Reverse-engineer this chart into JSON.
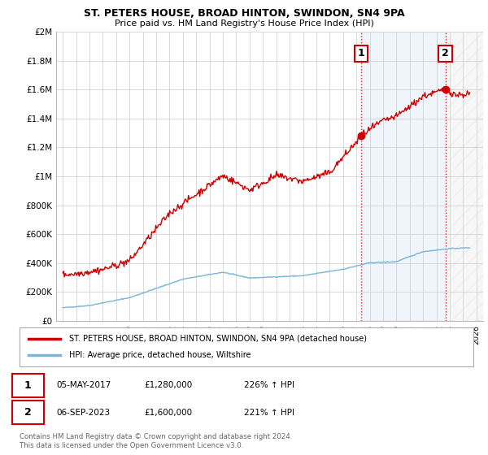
{
  "title": "ST. PETERS HOUSE, BROAD HINTON, SWINDON, SN4 9PA",
  "subtitle": "Price paid vs. HM Land Registry's House Price Index (HPI)",
  "legend_line1": "ST. PETERS HOUSE, BROAD HINTON, SWINDON, SN4 9PA (detached house)",
  "legend_line2": "HPI: Average price, detached house, Wiltshire",
  "annotation1": {
    "num": "1",
    "date": "05-MAY-2017",
    "price": "£1,280,000",
    "hpi": "226% ↑ HPI",
    "year": 2017.35,
    "value": 1280000
  },
  "annotation2": {
    "num": "2",
    "date": "06-SEP-2023",
    "price": "£1,600,000",
    "hpi": "221% ↑ HPI",
    "year": 2023.67,
    "value": 1600000
  },
  "footer": "Contains HM Land Registry data © Crown copyright and database right 2024.\nThis data is licensed under the Open Government Licence v3.0.",
  "hpi_color": "#7ab4d8",
  "price_color": "#cc0000",
  "dashed_color": "#cc0000",
  "background_color": "#ffffff",
  "grid_color": "#cccccc",
  "highlight_color": "#ddeeff",
  "hatch_color": "#cccccc",
  "ylim": [
    0,
    2000000
  ],
  "xlim": [
    1994.5,
    2026.5
  ],
  "yticks": [
    0,
    200000,
    400000,
    600000,
    800000,
    1000000,
    1200000,
    1400000,
    1600000,
    1800000,
    2000000
  ],
  "ytick_labels": [
    "£0",
    "£200K",
    "£400K",
    "£600K",
    "£800K",
    "£1M",
    "£1.2M",
    "£1.4M",
    "£1.6M",
    "£1.8M",
    "£2M"
  ]
}
